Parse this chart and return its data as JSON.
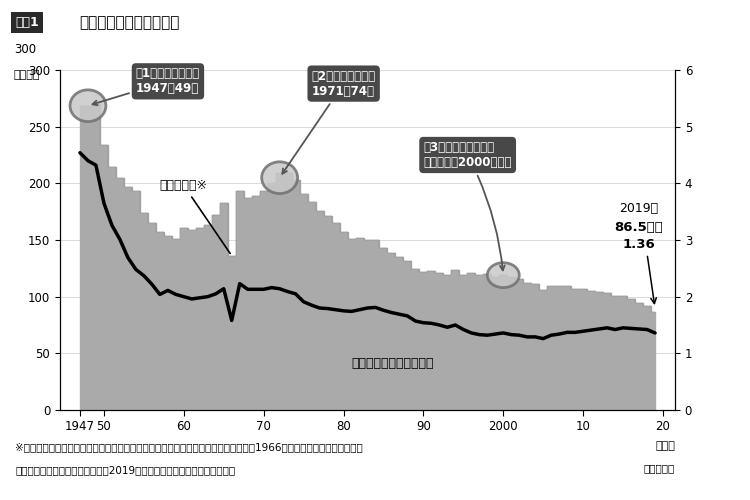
{
  "title_box": "図表1",
  "title_main": "出生数の推移（確定数）",
  "ylabel_left": "（万人）",
  "ylim_left": [
    0,
    300
  ],
  "ylim_right": [
    0,
    6
  ],
  "yticks_left": [
    0,
    50,
    100,
    150,
    200,
    250,
    300
  ],
  "yticks_right": [
    0,
    1,
    2,
    3,
    4,
    5,
    6
  ],
  "footer1": "※ひのえうま生まれの女性は気性が激しすぎて夫を不幸にする、という迷信により、1966年の出生数は大きく減少した",
  "footer2": "（出所）厚生労働省「令和元年（2019）人口動態統計（確定数）の概況」",
  "background_color": "#ffffff",
  "bar_color": "#aaaaaa",
  "bar_edge_color": "#888888",
  "line_color": "#000000",
  "years": [
    1947,
    1948,
    1949,
    1950,
    1951,
    1952,
    1953,
    1954,
    1955,
    1956,
    1957,
    1958,
    1959,
    1960,
    1961,
    1962,
    1963,
    1964,
    1965,
    1966,
    1967,
    1968,
    1969,
    1970,
    1971,
    1972,
    1973,
    1974,
    1975,
    1976,
    1977,
    1978,
    1979,
    1980,
    1981,
    1982,
    1983,
    1984,
    1985,
    1986,
    1987,
    1988,
    1989,
    1990,
    1991,
    1992,
    1993,
    1994,
    1995,
    1996,
    1997,
    1998,
    1999,
    2000,
    2001,
    2002,
    2003,
    2004,
    2005,
    2006,
    2007,
    2008,
    2009,
    2010,
    2011,
    2012,
    2013,
    2014,
    2015,
    2016,
    2017,
    2018,
    2019
  ],
  "births": [
    267.8,
    268.0,
    269.7,
    233.4,
    214.6,
    205.0,
    196.6,
    193.4,
    173.5,
    165.0,
    156.7,
    153.4,
    150.5,
    160.6,
    158.5,
    160.9,
    163.1,
    172.4,
    182.3,
    136.1,
    193.6,
    187.2,
    188.5,
    193.3,
    200.5,
    209.2,
    209.2,
    202.9,
    190.2,
    183.2,
    175.5,
    170.8,
    164.6,
    157.2,
    151.3,
    151.7,
    150.2,
    149.7,
    143.2,
    138.2,
    134.7,
    131.9,
    124.7,
    122.2,
    122.3,
    120.7,
    118.8,
    123.8,
    118.7,
    120.7,
    119.1,
    120.3,
    117.7,
    119.1,
    117.1,
    115.3,
    112.4,
    111.1,
    106.3,
    109.3,
    109.0,
    109.1,
    107.0,
    107.2,
    105.1,
    103.7,
    102.9,
    100.3,
    100.5,
    97.7,
    94.6,
    91.8,
    86.5
  ],
  "tfr": [
    4.54,
    4.4,
    4.32,
    3.65,
    3.26,
    3.01,
    2.69,
    2.48,
    2.37,
    2.22,
    2.04,
    2.11,
    2.04,
    2.0,
    1.96,
    1.98,
    2.0,
    2.05,
    2.14,
    1.58,
    2.23,
    2.13,
    2.13,
    2.13,
    2.16,
    2.14,
    2.09,
    2.05,
    1.91,
    1.85,
    1.8,
    1.79,
    1.77,
    1.75,
    1.74,
    1.77,
    1.8,
    1.81,
    1.76,
    1.72,
    1.69,
    1.66,
    1.57,
    1.54,
    1.53,
    1.5,
    1.46,
    1.5,
    1.42,
    1.36,
    1.33,
    1.32,
    1.34,
    1.36,
    1.33,
    1.32,
    1.29,
    1.29,
    1.26,
    1.32,
    1.34,
    1.37,
    1.37,
    1.39,
    1.41,
    1.43,
    1.45,
    1.42,
    1.45,
    1.44,
    1.43,
    1.42,
    1.36
  ],
  "ann1_label": "第1次ベビーブーム\n1947～49年",
  "ann1_circle_year": 1948,
  "ann1_circle_birth": 268.5,
  "ann1_text_year": 1954,
  "ann1_text_birth": 290,
  "ann2_label": "第2次ベビーブーム\n1971～74年",
  "ann2_circle_year": 1972,
  "ann2_circle_birth": 205,
  "ann2_text_year": 1976,
  "ann2_text_birth": 288,
  "ann3_label": "第3次ベビーブームは\n到来せず（2000年頃）",
  "ann3_circle_year": 2000,
  "ann3_circle_birth": 119,
  "ann3_text_year": 1990,
  "ann3_text_birth": 225,
  "hinoeuma_label": "ひのえうま※",
  "hinoeuma_year": 1966,
  "hinoeuma_text_year": 1957,
  "hinoeuma_text_birth": 195,
  "tfr_label": "合計特殊出生率（右軸）",
  "tfr_label_year": 1981,
  "tfr_label_birth": 38,
  "latest_text": "2019年",
  "latest_births_text": "86.5万人",
  "latest_tfr_text": "1.36",
  "latest_year": 2019,
  "latest_birth": 86.5
}
